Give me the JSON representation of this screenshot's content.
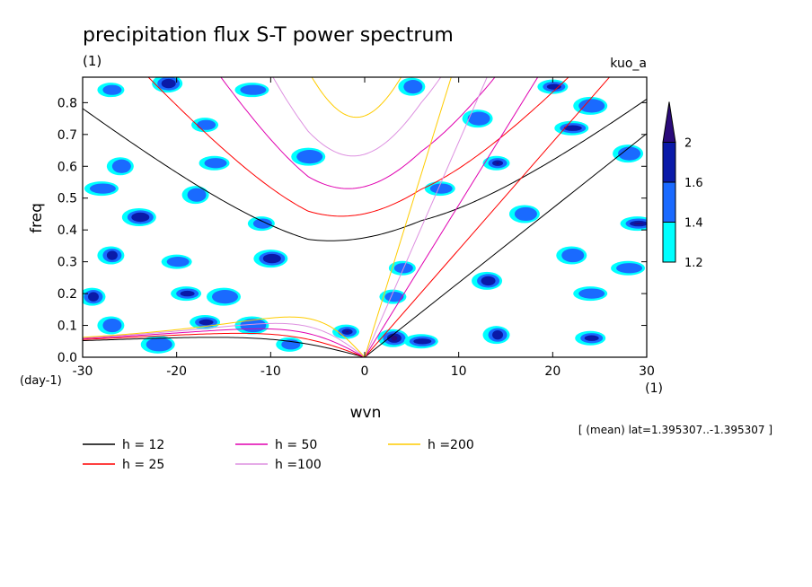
{
  "chart_data": {
    "type": "heatmap",
    "title": "precipitation flux S-T power spectrum",
    "subtitle_unit": "(1)",
    "run_label": "kuo_a",
    "xlabel": "wvn",
    "ylabel": "freq",
    "x_unit": "(1)",
    "y_unit": "(day-1)",
    "xlim": [
      -30,
      30
    ],
    "ylim": [
      0,
      0.88
    ],
    "x_ticks": [
      -30,
      -20,
      -10,
      0,
      10,
      20,
      30
    ],
    "x_tick_labels": [
      "-30",
      "-20",
      "-10",
      "0",
      "10",
      "20",
      "30"
    ],
    "y_ticks": [
      0,
      0.1,
      0.2,
      0.3,
      0.4,
      0.5,
      0.6,
      0.7,
      0.8
    ],
    "y_tick_labels": [
      "0.0",
      "0.1",
      "0.2",
      "0.3",
      "0.4",
      "0.5",
      "0.6",
      "0.7",
      "0.8"
    ],
    "footer_note": "[ (mean) lat=1.395307..-1.395307 ]",
    "colorbar": {
      "levels": [
        1.2,
        1.4,
        1.6,
        2
      ],
      "level_labels": [
        "1.2",
        "1.4",
        "1.6",
        "2"
      ],
      "colors": [
        "#00ffff",
        "#1a6aff",
        "#0a1aa8",
        "#2a0a7a"
      ],
      "extend": "max"
    },
    "blobs": [
      {
        "x": -27,
        "y": 0.84,
        "level": 1
      },
      {
        "x": -21,
        "y": 0.86,
        "level": 2
      },
      {
        "x": -12,
        "y": 0.84,
        "level": 1
      },
      {
        "x": 5,
        "y": 0.85,
        "level": 1
      },
      {
        "x": 20,
        "y": 0.85,
        "level": 2
      },
      {
        "x": 24,
        "y": 0.79,
        "level": 1
      },
      {
        "x": -17,
        "y": 0.73,
        "level": 1
      },
      {
        "x": 12,
        "y": 0.75,
        "level": 1
      },
      {
        "x": 22,
        "y": 0.72,
        "level": 2
      },
      {
        "x": -26,
        "y": 0.6,
        "level": 1
      },
      {
        "x": -16,
        "y": 0.61,
        "level": 1
      },
      {
        "x": -6,
        "y": 0.63,
        "level": 1
      },
      {
        "x": 14,
        "y": 0.61,
        "level": 3
      },
      {
        "x": 28,
        "y": 0.64,
        "level": 1
      },
      {
        "x": -28,
        "y": 0.53,
        "level": 1
      },
      {
        "x": -18,
        "y": 0.51,
        "level": 1
      },
      {
        "x": 8,
        "y": 0.53,
        "level": 1
      },
      {
        "x": -24,
        "y": 0.44,
        "level": 2
      },
      {
        "x": -11,
        "y": 0.42,
        "level": 1
      },
      {
        "x": 17,
        "y": 0.45,
        "level": 1
      },
      {
        "x": 29,
        "y": 0.42,
        "level": 3
      },
      {
        "x": -27,
        "y": 0.32,
        "level": 2
      },
      {
        "x": -20,
        "y": 0.3,
        "level": 1
      },
      {
        "x": -10,
        "y": 0.31,
        "level": 2
      },
      {
        "x": 4,
        "y": 0.28,
        "level": 1
      },
      {
        "x": 22,
        "y": 0.32,
        "level": 1
      },
      {
        "x": 28,
        "y": 0.28,
        "level": 1
      },
      {
        "x": -29,
        "y": 0.19,
        "level": 2
      },
      {
        "x": -19,
        "y": 0.2,
        "level": 2
      },
      {
        "x": -15,
        "y": 0.19,
        "level": 1
      },
      {
        "x": 3,
        "y": 0.19,
        "level": 1
      },
      {
        "x": 13,
        "y": 0.24,
        "level": 2
      },
      {
        "x": 24,
        "y": 0.2,
        "level": 1
      },
      {
        "x": -27,
        "y": 0.1,
        "level": 1
      },
      {
        "x": -17,
        "y": 0.11,
        "level": 2
      },
      {
        "x": -12,
        "y": 0.1,
        "level": 1
      },
      {
        "x": -2,
        "y": 0.08,
        "level": 3
      },
      {
        "x": 3,
        "y": 0.06,
        "level": 3
      },
      {
        "x": 6,
        "y": 0.05,
        "level": 2
      },
      {
        "x": 14,
        "y": 0.07,
        "level": 2
      },
      {
        "x": 24,
        "y": 0.06,
        "level": 2
      },
      {
        "x": -22,
        "y": 0.04,
        "level": 1
      },
      {
        "x": -8,
        "y": 0.04,
        "level": 1
      }
    ],
    "series": [
      {
        "name": "h = 12",
        "h": 12,
        "color": "#000000"
      },
      {
        "name": "h = 25",
        "h": 25,
        "color": "#ff0000"
      },
      {
        "name": "h = 50",
        "h": 50,
        "color": "#e000b0"
      },
      {
        "name": "h =100",
        "h": 100,
        "color": "#dd90e0"
      },
      {
        "name": "h =200",
        "h": 200,
        "color": "#ffcc00"
      }
    ],
    "grid": false
  }
}
